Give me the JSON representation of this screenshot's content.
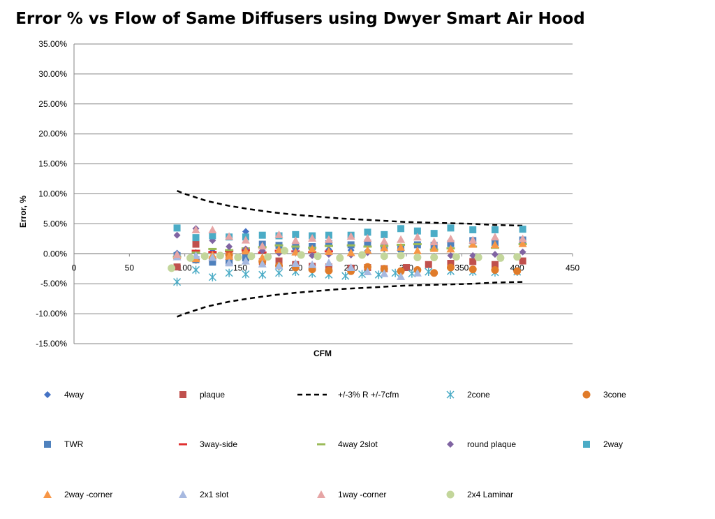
{
  "chart_data": {
    "type": "scatter",
    "title": "Error % vs Flow of Same Diffusers using Dwyer Smart Air Hood",
    "xlabel": "CFM",
    "ylabel": "Error, %",
    "xlim": [
      0,
      450
    ],
    "ylim": [
      -15,
      35
    ],
    "x_ticks": [
      0,
      50,
      100,
      150,
      200,
      250,
      300,
      350,
      400,
      450
    ],
    "y_ticks": [
      -15,
      -10,
      -5,
      0,
      5,
      10,
      15,
      20,
      25,
      30,
      35
    ],
    "y_tick_labels": [
      "-15.00%",
      "-10.00%",
      "-5.00%",
      "0.00%",
      "5.00%",
      "10.00%",
      "15.00%",
      "20.00%",
      "25.00%",
      "30.00%",
      "35.00%"
    ],
    "grid": "horizontal",
    "legend_position": "bottom",
    "series": [
      {
        "name": "4way",
        "marker": "diamond",
        "color": "#4472C4",
        "x": [
          93,
          110,
          125,
          140,
          155,
          170,
          185,
          200,
          215,
          230,
          250,
          265,
          280,
          295
        ],
        "y": [
          0.1,
          0.2,
          0.4,
          0.5,
          3.7,
          1.2,
          1.0,
          0.8,
          0.9,
          0.7,
          0.6,
          0.5,
          0.8,
          0.4
        ]
      },
      {
        "name": "plaque",
        "marker": "square",
        "color": "#C0504D",
        "x": [
          93,
          110,
          125,
          140,
          155,
          170,
          185,
          200,
          215,
          230,
          250,
          265,
          280,
          300,
          320,
          340,
          360,
          380,
          405
        ],
        "y": [
          -2.2,
          1.6,
          -1.0,
          -1.1,
          -0.5,
          -1.3,
          -1.2,
          -1.8,
          -2.1,
          -2.2,
          -2.4,
          -2.3,
          -2.5,
          -2.3,
          -1.8,
          -1.6,
          -1.3,
          -1.8,
          -1.2
        ]
      },
      {
        "name": "+/-3% R +/-7cfm",
        "marker": "dashed-line",
        "color": "#000000",
        "x": [
          93,
          100,
          120,
          140,
          160,
          180,
          200,
          220,
          240,
          260,
          280,
          300,
          320,
          340,
          360,
          380,
          405
        ],
        "y": [
          10.5,
          10.0,
          8.8,
          8.0,
          7.4,
          6.9,
          6.5,
          6.2,
          5.9,
          5.7,
          5.5,
          5.3,
          5.2,
          5.1,
          5.0,
          4.8,
          4.7
        ]
      },
      {
        "name": "",
        "marker": "dashed-line",
        "color": "#000000",
        "x": [
          93,
          100,
          120,
          140,
          160,
          180,
          200,
          220,
          240,
          260,
          280,
          300,
          320,
          340,
          360,
          380,
          405
        ],
        "y": [
          -10.5,
          -10.0,
          -8.8,
          -8.0,
          -7.4,
          -6.9,
          -6.5,
          -6.2,
          -5.9,
          -5.7,
          -5.5,
          -5.3,
          -5.2,
          -5.1,
          -5.0,
          -4.8,
          -4.7
        ]
      },
      {
        "name": "2cone",
        "marker": "star",
        "color": "#4BACC6",
        "x": [
          93,
          110,
          125,
          140,
          155,
          170,
          185,
          200,
          215,
          230,
          245,
          260,
          275,
          290,
          305,
          320,
          340,
          360,
          380,
          400
        ],
        "y": [
          -4.7,
          -2.7,
          -3.9,
          -3.2,
          -3.4,
          -3.5,
          -3.2,
          -3.0,
          -3.3,
          -3.5,
          -3.7,
          -3.4,
          -3.5,
          -3.2,
          -3.3,
          -3.0,
          -2.9,
          -3.0,
          -3.1,
          -3.0
        ]
      },
      {
        "name": "3cone",
        "marker": "circle",
        "color": "#E07B2A",
        "x": [
          110,
          125,
          140,
          155,
          170,
          185,
          200,
          215,
          230,
          250,
          265,
          280,
          295,
          310,
          325,
          340,
          360,
          380,
          400
        ],
        "y": [
          -1.0,
          -0.8,
          -0.2,
          0.3,
          -1.3,
          -2.0,
          -2.3,
          -2.6,
          -2.8,
          -2.9,
          -2.2,
          -2.5,
          -2.9,
          -2.7,
          -3.2,
          -2.3,
          -2.6,
          -2.7,
          -2.9
        ]
      },
      {
        "name": "TWR",
        "marker": "square",
        "color": "#4F81BD",
        "x": [
          93,
          110,
          125,
          140,
          155,
          170,
          185,
          200,
          215,
          230,
          250,
          265,
          280,
          295,
          310,
          325,
          340,
          360,
          380,
          405
        ],
        "y": [
          -0.3,
          -1.0,
          -1.4,
          -1.5,
          -0.7,
          1.6,
          1.4,
          1.3,
          1.2,
          1.7,
          1.5,
          1.8,
          1.2,
          1.0,
          1.5,
          1.4,
          1.7,
          2.2,
          1.9,
          2.3
        ]
      },
      {
        "name": "3way-side",
        "marker": "dash",
        "color": "#E03030",
        "x": [
          110,
          125,
          140,
          155,
          170,
          185,
          200,
          215,
          230
        ],
        "y": [
          0.5,
          0.3,
          0.4,
          0.6,
          0.2,
          0.5,
          0.4,
          0.3,
          0.4
        ]
      },
      {
        "name": "4way 2slot",
        "marker": "dash",
        "color": "#9BBB59",
        "x": [
          93,
          110,
          125,
          140,
          155,
          170,
          185,
          200,
          215,
          230,
          250,
          265,
          280,
          295,
          310,
          325,
          340,
          360,
          380,
          405
        ],
        "y": [
          -0.5,
          0.2,
          0.8,
          0.6,
          0.9,
          1.1,
          1.4,
          1.2,
          1.0,
          1.3,
          1.4,
          1.2,
          1.3,
          1.5,
          1.6,
          0.7,
          0.9,
          1.2,
          1.0,
          1.6
        ]
      },
      {
        "name": "round plaque",
        "marker": "diamond",
        "color": "#8064A2",
        "x": [
          93,
          110,
          125,
          140,
          155,
          170,
          185,
          200,
          215,
          230,
          250,
          265,
          280,
          295,
          310,
          325,
          340,
          360,
          380,
          405
        ],
        "y": [
          3.1,
          4.2,
          2.2,
          1.2,
          0.8,
          0.5,
          0.1,
          0.3,
          -0.3,
          -0.1,
          -0.2,
          0.2,
          -0.4,
          -0.2,
          -0.5,
          -0.4,
          -0.3,
          -0.3,
          -0.1,
          0.3
        ]
      },
      {
        "name": "2way",
        "marker": "square",
        "color": "#4BACC6",
        "x": [
          93,
          110,
          125,
          140,
          155,
          170,
          185,
          200,
          215,
          230,
          250,
          265,
          280,
          295,
          310,
          325,
          340,
          360,
          380,
          405
        ],
        "y": [
          4.3,
          2.7,
          3.0,
          2.8,
          2.8,
          3.1,
          3.0,
          3.2,
          3.0,
          3.1,
          3.1,
          3.6,
          3.2,
          4.2,
          3.8,
          3.4,
          4.3,
          4.0,
          4.0,
          4.1
        ]
      },
      {
        "name": "2way -corner",
        "marker": "triangle",
        "color": "#F79646",
        "x": [
          93,
          110,
          125,
          140,
          155,
          170,
          185,
          200,
          215,
          230,
          250,
          265,
          280,
          295,
          310,
          325,
          340,
          360,
          380,
          405
        ],
        "y": [
          -0.3,
          -0.8,
          -0.2,
          -0.4,
          0.5,
          -0.6,
          0.7,
          0.3,
          0.8,
          0.4,
          0.2,
          0.6,
          1.0,
          1.1,
          0.5,
          0.9,
          0.8,
          1.6,
          1.5,
          1.7
        ]
      },
      {
        "name": "2x1 slot",
        "marker": "triangle",
        "color": "#A7B9E0",
        "x": [
          93,
          110,
          125,
          140,
          155,
          170,
          185,
          200,
          215,
          230,
          250,
          265,
          280,
          295,
          310
        ],
        "y": [
          -0.5,
          -0.3,
          -0.6,
          -1.5,
          -1.2,
          -1.7,
          -2.0,
          -1.6,
          -1.8,
          -1.5,
          -2.3,
          -3.0,
          -3.3,
          -3.8,
          -3.2
        ]
      },
      {
        "name": "1way -corner",
        "marker": "triangle",
        "color": "#E6A5A5",
        "x": [
          93,
          110,
          125,
          140,
          155,
          170,
          185,
          200,
          215,
          230,
          250,
          265,
          280,
          295,
          310,
          325,
          340,
          360,
          380,
          405
        ],
        "y": [
          -0.1,
          4.0,
          4.0,
          2.9,
          2.3,
          1.3,
          3.2,
          2.2,
          2.6,
          2.4,
          2.9,
          2.6,
          2.1,
          2.4,
          2.8,
          2.0,
          2.5,
          2.3,
          2.8,
          2.5
        ]
      },
      {
        "name": "2x4 Laminar",
        "marker": "circle",
        "color": "#C3D69B",
        "x": [
          88,
          105,
          118,
          132,
          148,
          160,
          175,
          190,
          205,
          220,
          240,
          260,
          280,
          295,
          310,
          325,
          345,
          365,
          385,
          400
        ],
        "y": [
          -2.4,
          -0.7,
          -0.4,
          -0.3,
          -0.6,
          -0.4,
          -0.5,
          0.5,
          -0.2,
          -0.4,
          -0.7,
          -0.2,
          -0.4,
          -0.3,
          -0.6,
          -0.6,
          -0.5,
          -0.6,
          -0.7,
          -0.5
        ]
      }
    ]
  }
}
